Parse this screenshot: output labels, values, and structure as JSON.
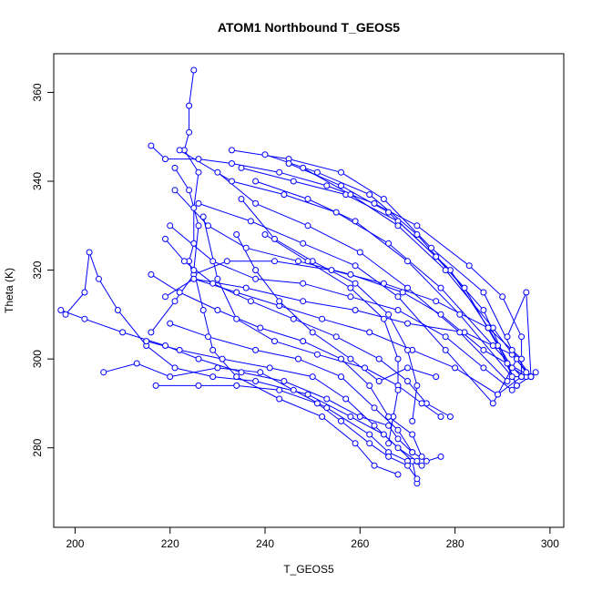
{
  "chart_data": {
    "type": "scatter",
    "title": "ATOM1 Northbound T_GEOS5",
    "xlabel": "T_GEOS5",
    "ylabel": "Theta (K)",
    "xlim": [
      195.5,
      302.9
    ],
    "ylim": [
      262.1,
      368.7
    ],
    "xticks": [
      200,
      220,
      240,
      260,
      280,
      300
    ],
    "yticks": [
      280,
      300,
      320,
      340,
      360
    ],
    "grid": false,
    "legend": "none",
    "colors": {
      "series": "#0000ff",
      "axes": "#000000",
      "background": "#ffffff"
    },
    "series": [
      {
        "segments": [
          [
            [
              225,
              365
            ],
            [
              224,
              357
            ],
            [
              224,
              351
            ],
            [
              223,
              347
            ],
            [
              226,
              342
            ],
            [
              225,
              334
            ],
            [
              225,
              326
            ],
            [
              224,
              322
            ],
            [
              225,
              318
            ],
            [
              236,
              316
            ],
            [
              248,
              313
            ],
            [
              259,
              311
            ],
            [
              270,
              308
            ],
            [
              282,
              306
            ],
            [
              292,
              301
            ],
            [
              296,
              296
            ],
            [
              295,
              315
            ],
            [
              291,
              305
            ]
          ],
          [
            [
              216,
              348
            ],
            [
              219,
              345
            ],
            [
              226,
              345
            ],
            [
              233,
              344
            ],
            [
              243,
              342
            ],
            [
              253,
              339
            ],
            [
              263,
              335
            ],
            [
              272,
              330
            ],
            [
              283,
              321
            ],
            [
              290,
              314
            ],
            [
              294,
              305
            ],
            [
              294,
              296
            ]
          ],
          [
            [
              233,
              347
            ],
            [
              245,
              345
            ],
            [
              256,
              342
            ],
            [
              265,
              336
            ],
            [
              275,
              325
            ],
            [
              286,
              315
            ],
            [
              292,
              302
            ],
            [
              296,
              296
            ]
          ],
          [
            [
              240,
              346
            ],
            [
              251,
              342
            ],
            [
              262,
              337
            ],
            [
              272,
              328
            ],
            [
              282,
              316
            ],
            [
              289,
              303
            ],
            [
              293,
              294
            ],
            [
              297,
              297
            ]
          ],
          [
            [
              235,
              343
            ],
            [
              246,
              340
            ],
            [
              257,
              337
            ],
            [
              268,
              331
            ],
            [
              279,
              320
            ],
            [
              287,
              307
            ],
            [
              292,
              298
            ],
            [
              295,
              296
            ]
          ],
          [
            [
              222,
              347
            ],
            [
              233,
              340
            ],
            [
              244,
              337
            ],
            [
              255,
              333
            ],
            [
              266,
              326
            ],
            [
              277,
              316
            ],
            [
              288,
              303
            ],
            [
              294,
              296
            ]
          ],
          [
            [
              245,
              344
            ],
            [
              256,
              339
            ],
            [
              266,
              333
            ],
            [
              276,
              323
            ],
            [
              286,
              311
            ],
            [
              291,
              299
            ],
            [
              293,
              294
            ]
          ],
          [
            [
              230,
              342
            ],
            [
              238,
              335
            ],
            [
              249,
              330
            ],
            [
              260,
              324
            ],
            [
              270,
              316
            ],
            [
              281,
              306
            ],
            [
              291,
              295
            ]
          ],
          [
            [
              248,
              343
            ],
            [
              258,
              337
            ],
            [
              268,
              330
            ],
            [
              278,
              320
            ],
            [
              288,
              307
            ],
            [
              295,
              297
            ]
          ],
          [
            [
              226,
              335
            ],
            [
              237,
              331
            ],
            [
              248,
              326
            ],
            [
              259,
              321
            ],
            [
              268,
              314
            ],
            [
              278,
              302
            ],
            [
              288,
              290
            ],
            [
              293,
              300
            ]
          ],
          [
            [
              221,
              338
            ],
            [
              228,
              330
            ],
            [
              236,
              325
            ],
            [
              247,
              322
            ],
            [
              258,
              319
            ],
            [
              269,
              315
            ],
            [
              277,
              310
            ],
            [
              286,
              302
            ],
            [
              296,
              296
            ]
          ],
          [
            [
              238,
              340
            ],
            [
              249,
              336
            ],
            [
              259,
              331
            ],
            [
              270,
              322
            ],
            [
              281,
              310
            ],
            [
              292,
              296
            ],
            [
              296,
              296
            ]
          ],
          [
            [
              216,
              306
            ],
            [
              221,
              313
            ],
            [
              225,
              319
            ],
            [
              232,
              322
            ],
            [
              242,
              322
            ],
            [
              254,
              320
            ],
            [
              265,
              317
            ],
            [
              276,
              313
            ],
            [
              287,
              307
            ],
            [
              294,
              300
            ]
          ],
          [
            [
              219,
              314
            ],
            [
              225,
              318
            ],
            [
              234,
              315
            ],
            [
              243,
              312
            ],
            [
              252,
              309
            ],
            [
              262,
              306
            ],
            [
              271,
              302
            ],
            [
              280,
              298
            ],
            [
              289,
              292
            ],
            [
              294,
              296
            ]
          ],
          [
            [
              220,
              330
            ],
            [
              229,
              322
            ],
            [
              238,
              318
            ],
            [
              248,
              317
            ],
            [
              258,
              314
            ],
            [
              268,
              311
            ],
            [
              278,
              305
            ],
            [
              286,
              298
            ],
            [
              292,
              293
            ]
          ],
          [
            [
              198,
              310
            ],
            [
              202,
              315
            ],
            [
              203,
              324
            ],
            [
              205,
              318
            ],
            [
              209,
              311
            ],
            [
              215,
              303
            ],
            [
              221,
              298
            ],
            [
              229,
              296
            ],
            [
              238,
              295
            ],
            [
              249,
              292
            ],
            [
              258,
              287
            ],
            [
              265,
              283
            ],
            [
              271,
              277
            ],
            [
              272,
              272
            ]
          ],
          [
            [
              197,
              311
            ],
            [
              202,
              309
            ],
            [
              210,
              306
            ],
            [
              219,
              303
            ],
            [
              226,
              300
            ],
            [
              235,
              297
            ],
            [
              244,
              295
            ],
            [
              253,
              291
            ],
            [
              260,
              287
            ],
            [
              266,
              285
            ],
            [
              268,
              282
            ],
            [
              271,
              279
            ],
            [
              274,
              277
            ],
            [
              277,
              278
            ]
          ],
          [
            [
              215,
              304
            ],
            [
              222,
              302
            ],
            [
              231,
              300
            ],
            [
              241,
              298
            ],
            [
              250,
              296
            ],
            [
              257,
              291
            ],
            [
              263,
              285
            ],
            [
              268,
              280
            ],
            [
              272,
              277
            ]
          ],
          [
            [
              206,
              297
            ],
            [
              213,
              299
            ],
            [
              220,
              296
            ],
            [
              230,
              298
            ],
            [
              239,
              297
            ],
            [
              246,
              293
            ],
            [
              253,
              289
            ],
            [
              262,
              283
            ],
            [
              266,
              279
            ],
            [
              270,
              277
            ],
            [
              273,
              276
            ]
          ],
          [
            [
              217,
              294
            ],
            [
              226,
              294
            ],
            [
              234,
              294
            ],
            [
              243,
              293
            ],
            [
              251,
              290
            ],
            [
              256,
              286
            ],
            [
              262,
              281
            ],
            [
              266,
              278
            ],
            [
              270,
              276
            ],
            [
              272,
              273
            ]
          ],
          [
            [
              220,
              308
            ],
            [
              228,
              305
            ],
            [
              238,
              302
            ],
            [
              247,
              300
            ],
            [
              256,
              296
            ],
            [
              263,
              289
            ],
            [
              268,
              284
            ],
            [
              271,
              279
            ]
          ],
          [
            [
              219,
              327
            ],
            [
              223,
              322
            ],
            [
              229,
              317
            ],
            [
              237,
              313
            ],
            [
              246,
              309
            ],
            [
              255,
              305
            ],
            [
              264,
              300
            ],
            [
              270,
              295
            ],
            [
              274,
              290
            ],
            [
              279,
              287
            ]
          ],
          [
            [
              221,
              343
            ],
            [
              224,
              338
            ],
            [
              226,
              330
            ],
            [
              225,
              320
            ],
            [
              227,
              311
            ],
            [
              229,
              302
            ],
            [
              234,
              296
            ],
            [
              243,
              291
            ],
            [
              252,
              287
            ],
            [
              259,
              281
            ],
            [
              263,
              276
            ],
            [
              268,
              274
            ]
          ],
          [
            [
              227,
              332
            ],
            [
              230,
              318
            ],
            [
              234,
              309
            ],
            [
              242,
              304
            ],
            [
              251,
              301
            ],
            [
              261,
              298
            ],
            [
              268,
              294
            ],
            [
              273,
              290
            ],
            [
              277,
              287
            ]
          ],
          [
            [
              235,
              336
            ],
            [
              242,
              327
            ],
            [
              250,
              322
            ],
            [
              259,
              317
            ],
            [
              266,
              310
            ],
            [
              270,
              302
            ],
            [
              272,
              294
            ],
            [
              271,
              286
            ]
          ],
          [
            [
              240,
              328
            ],
            [
              249,
              322
            ],
            [
              258,
              316
            ],
            [
              265,
              309
            ],
            [
              268,
              300
            ],
            [
              268,
              293
            ],
            [
              267,
              287
            ],
            [
              266,
              281
            ]
          ],
          [
            [
              216,
              319
            ],
            [
              222,
              315
            ],
            [
              230,
              311
            ],
            [
              239,
              307
            ],
            [
              248,
              304
            ],
            [
              256,
              300
            ],
            [
              262,
              294
            ],
            [
              266,
              287
            ],
            [
              271,
              283
            ],
            [
              273,
              278
            ]
          ],
          [
            [
              234,
              328
            ],
            [
              238,
              320
            ],
            [
              243,
              313
            ],
            [
              250,
              306
            ],
            [
              258,
              300
            ],
            [
              264,
              295
            ],
            [
              270,
              298
            ],
            [
              276,
              296
            ]
          ]
        ]
      }
    ]
  }
}
